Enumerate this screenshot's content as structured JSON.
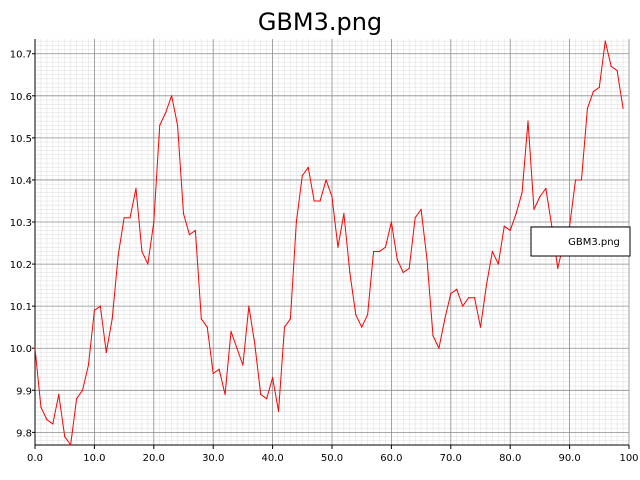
{
  "chart_data": {
    "type": "line",
    "title": "GBM3.png",
    "xlabel": "",
    "ylabel": "",
    "xlim": [
      0,
      100
    ],
    "ylim": [
      9.77,
      10.735
    ],
    "x_ticks": [
      0,
      10,
      20,
      30,
      40,
      50,
      60,
      70,
      80,
      90,
      100
    ],
    "x_tick_labels": [
      "0.0",
      "10.0",
      "20.0",
      "30.0",
      "40.0",
      "50.0",
      "60.0",
      "70.0",
      "80.0",
      "90.0",
      "100"
    ],
    "y_ticks": [
      9.8,
      9.9,
      10.0,
      10.1,
      10.2,
      10.3,
      10.4,
      10.5,
      10.6,
      10.7
    ],
    "y_tick_labels": [
      "9.8",
      "9.9",
      "10.0",
      "10.1",
      "10.2",
      "10.3",
      "10.4",
      "10.5",
      "10.6",
      "10.7"
    ],
    "grid": true,
    "legend": "right",
    "series": [
      {
        "name": "GBM3.png",
        "color": "#ff0000",
        "x": [
          0,
          1,
          2,
          3,
          4,
          5,
          6,
          7,
          8,
          9,
          10,
          11,
          12,
          13,
          14,
          15,
          16,
          17,
          18,
          19,
          20,
          21,
          22,
          23,
          24,
          25,
          26,
          27,
          28,
          29,
          30,
          31,
          32,
          33,
          34,
          35,
          36,
          37,
          38,
          39,
          40,
          41,
          42,
          43,
          44,
          45,
          46,
          47,
          48,
          49,
          50,
          51,
          52,
          53,
          54,
          55,
          56,
          57,
          58,
          59,
          60,
          61,
          62,
          63,
          64,
          65,
          66,
          67,
          68,
          69,
          70,
          71,
          72,
          73,
          74,
          75,
          76,
          77,
          78,
          79,
          80,
          81,
          82,
          83,
          84,
          85,
          86,
          87,
          88,
          89,
          90,
          91,
          92,
          93,
          94,
          95,
          96,
          97,
          98,
          99
        ],
        "values": [
          10.0,
          9.86,
          9.83,
          9.82,
          9.89,
          9.79,
          9.77,
          9.88,
          9.9,
          9.96,
          10.09,
          10.1,
          9.99,
          10.07,
          10.22,
          10.31,
          10.31,
          10.38,
          10.23,
          10.2,
          10.3,
          10.53,
          10.56,
          10.6,
          10.53,
          10.32,
          10.27,
          10.28,
          10.07,
          10.05,
          9.94,
          9.95,
          9.89,
          10.04,
          10.0,
          9.96,
          10.1,
          10.01,
          9.89,
          9.88,
          9.93,
          9.85,
          10.05,
          10.07,
          10.3,
          10.41,
          10.43,
          10.35,
          10.35,
          10.4,
          10.36,
          10.24,
          10.32,
          10.18,
          10.08,
          10.05,
          10.08,
          10.23,
          10.23,
          10.24,
          10.3,
          10.21,
          10.18,
          10.19,
          10.31,
          10.33,
          10.21,
          10.03,
          10.0,
          10.07,
          10.13,
          10.14,
          10.1,
          10.12,
          10.12,
          10.05,
          10.15,
          10.23,
          10.2,
          10.29,
          10.28,
          10.32,
          10.37,
          10.54,
          10.33,
          10.36,
          10.38,
          10.29,
          10.19,
          10.25,
          10.29,
          10.4,
          10.4,
          10.57,
          10.61,
          10.62,
          10.73,
          10.67,
          10.66,
          10.57
        ]
      }
    ]
  }
}
